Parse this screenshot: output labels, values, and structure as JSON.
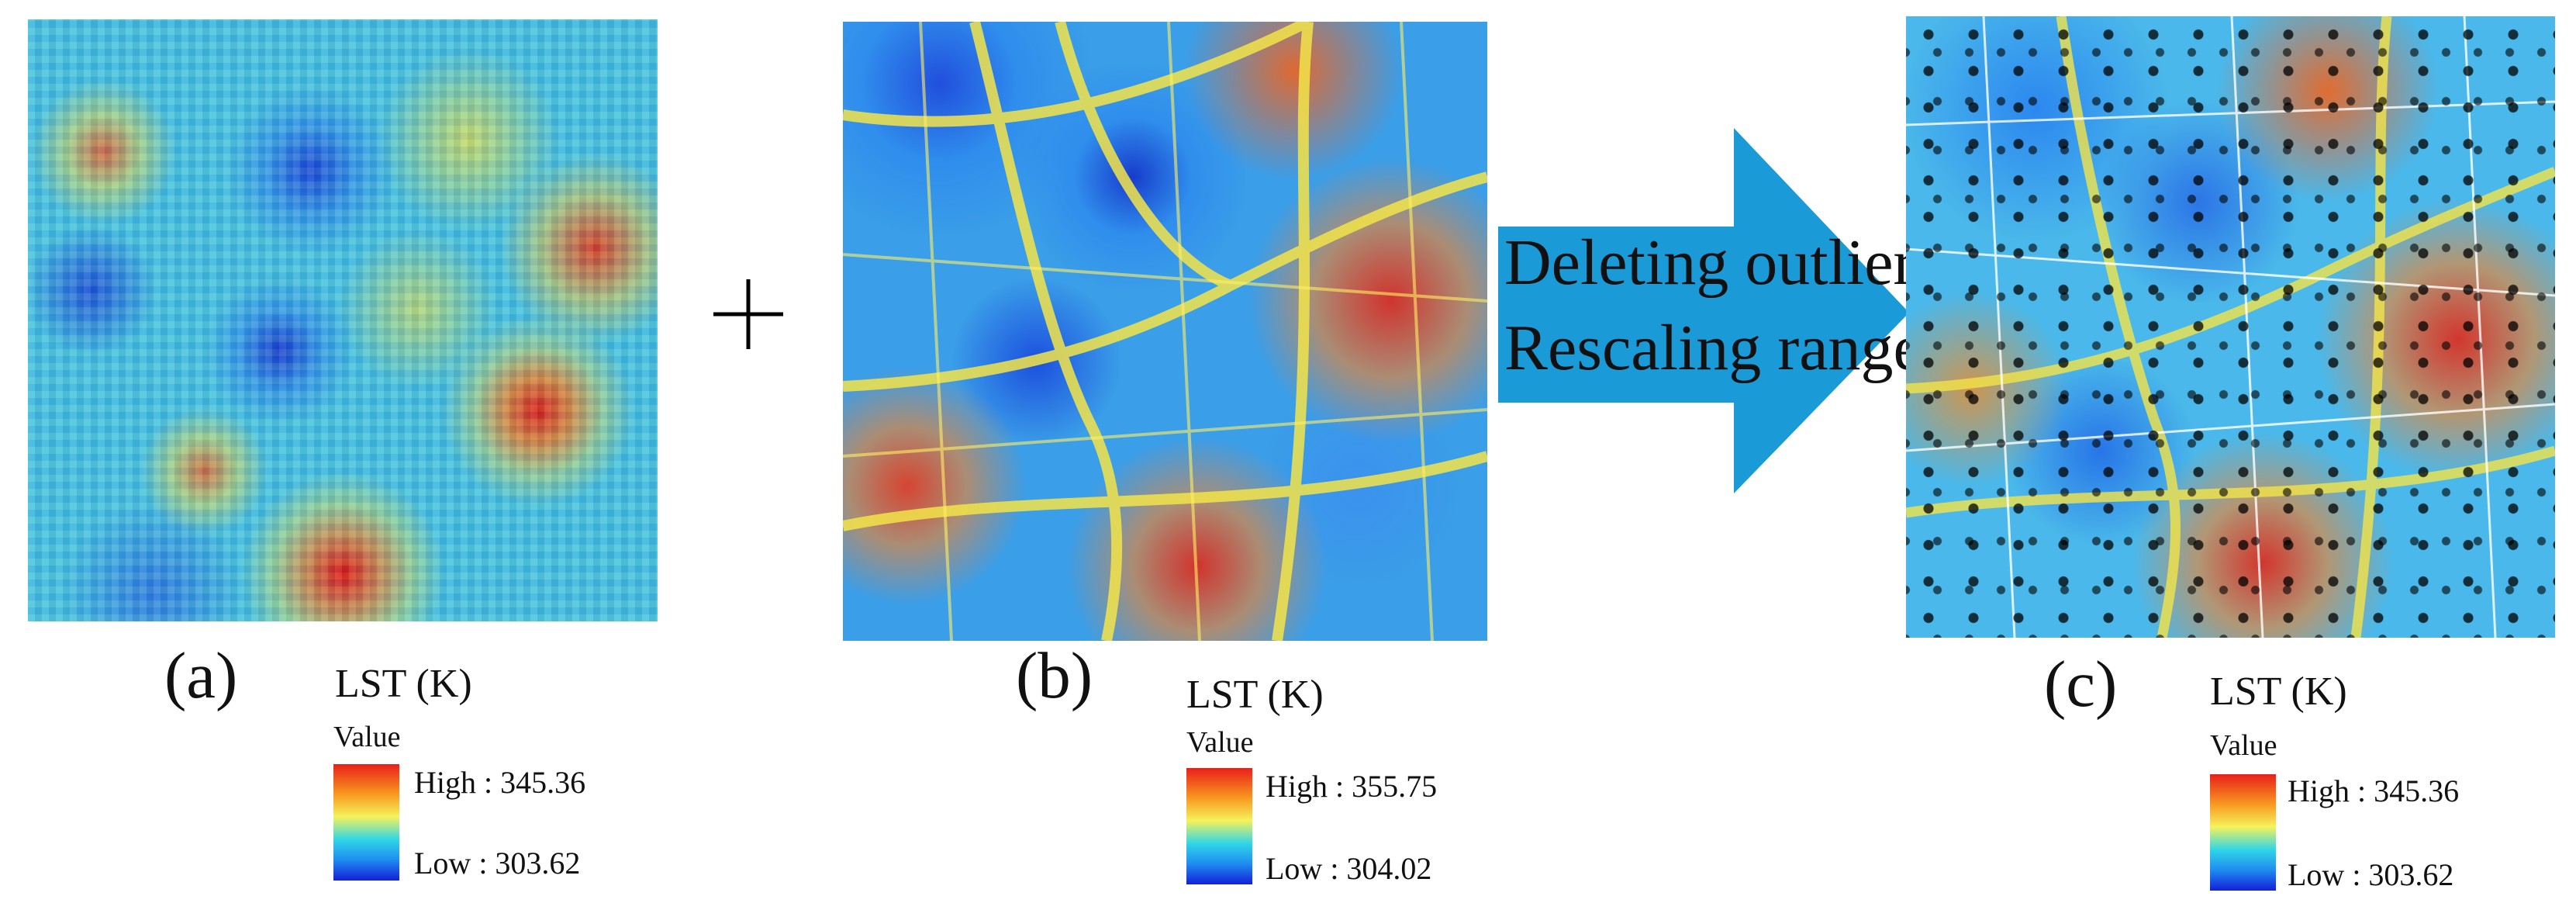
{
  "panels": [
    {
      "label": "(a)",
      "legend": {
        "title": "LST (K)",
        "subtitle": "Value",
        "high": "High : 345.36",
        "low": "Low : 303.62"
      }
    },
    {
      "label": "(b)",
      "legend": {
        "title": "LST (K)",
        "subtitle": "Value",
        "high": "High : 355.75",
        "low": "Low : 304.02"
      }
    },
    {
      "label": "(c)",
      "legend": {
        "title": "LST (K)",
        "subtitle": "Value",
        "high": "High : 345.36",
        "low": "Low : 303.62"
      }
    }
  ],
  "arrow": {
    "lines": [
      "Deleting outliers",
      "Rescaling range"
    ]
  }
}
